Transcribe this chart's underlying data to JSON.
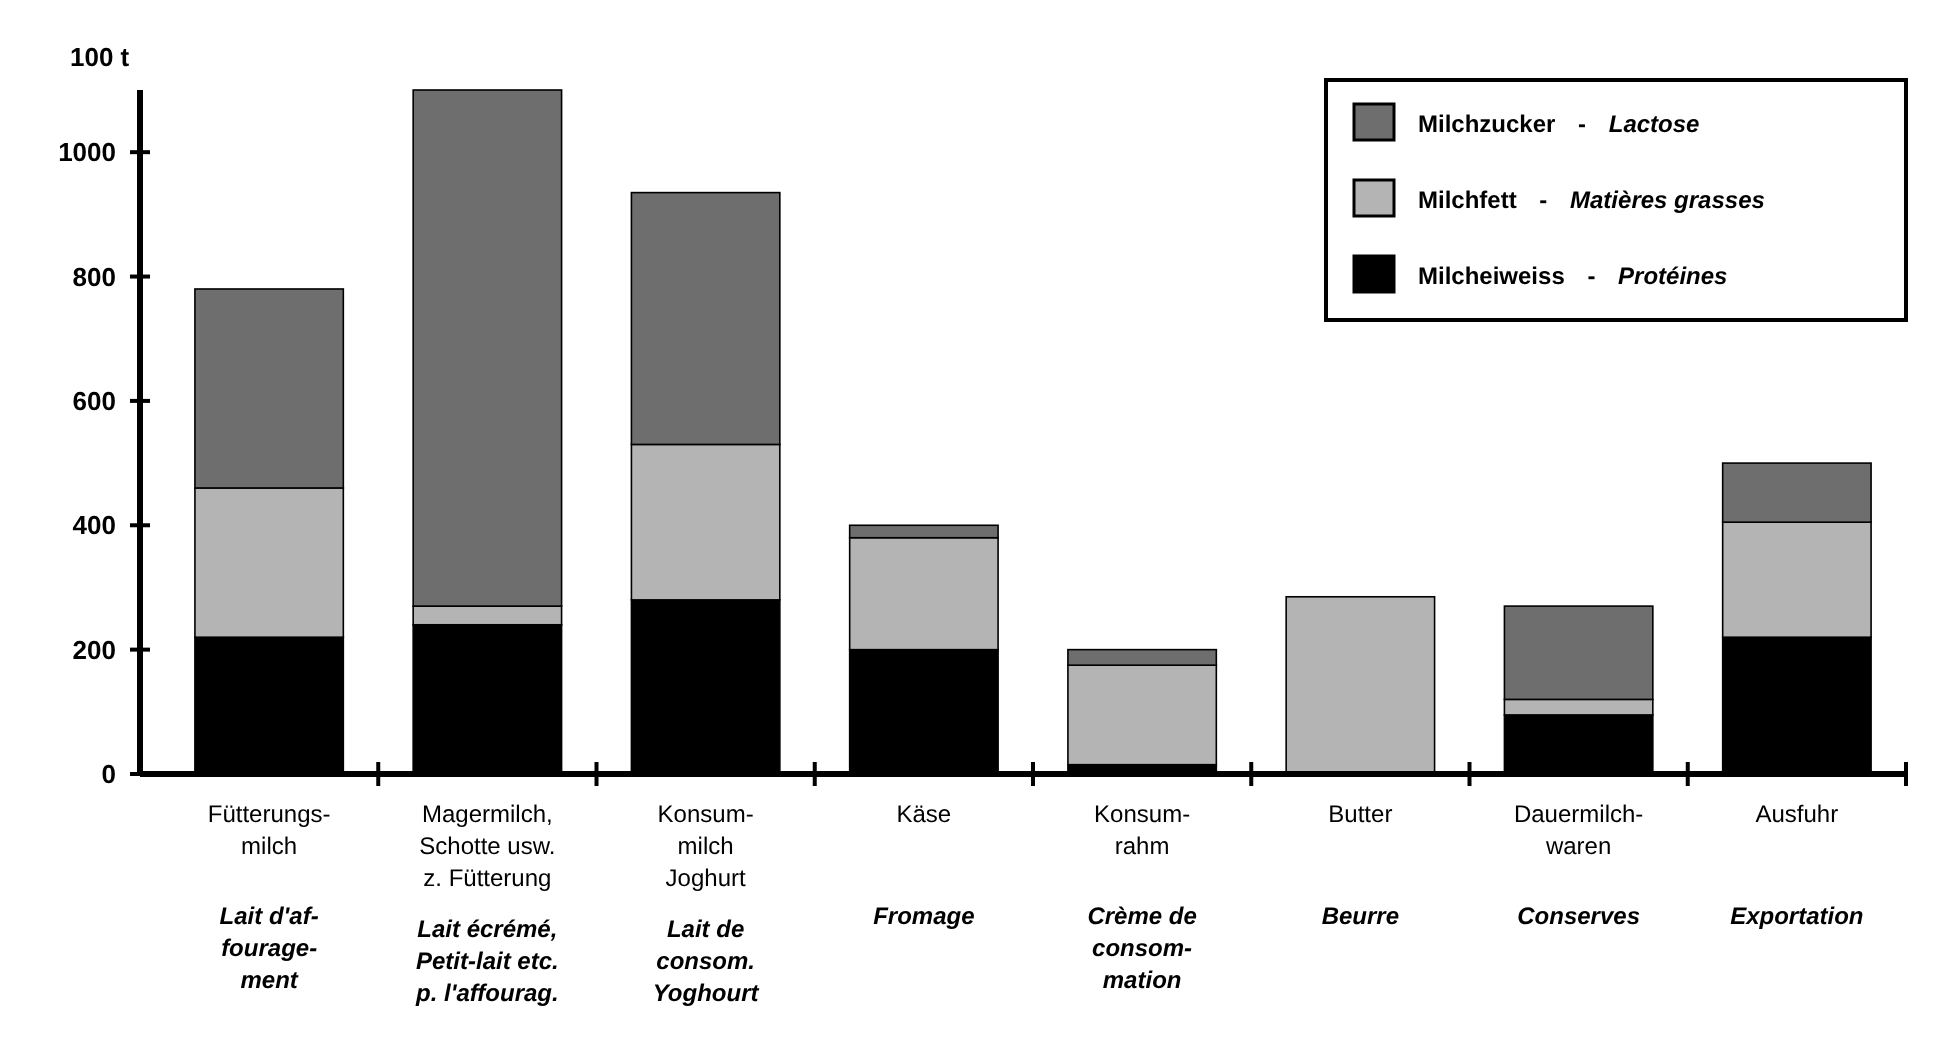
{
  "chart_data": {
    "type": "bar",
    "stacked": true,
    "ylabel": "100 t",
    "categories": [
      "Fütterungs-\nmilch\n\nLait d'af-\nfourage-\nment",
      "Magermilch,\nSchotte usw.\nz. Fütterung\n\nLait écrémé,\nPetit-lait etc.\np. l'affourag.",
      "Konsum-\nmilch\nJoghurt\n\nLait de\nconsom.\nYoghourt",
      "Käse\n\nFromage",
      "Konsum-\nrahm\n\nCrème de\nconsom-\nmation",
      "Butter\n\nBeurre",
      "Dauermilch-\nwaren\n\nConserves",
      "Ausfuhr\n\nExportation"
    ],
    "series": [
      {
        "name": "Milcheiweiss - Protéines",
        "color": "#000000",
        "values": [
          220,
          240,
          280,
          200,
          15,
          null,
          95,
          220
        ]
      },
      {
        "name": "Milchfett - Matières grasses",
        "color": "#b4b4b4",
        "values": [
          240,
          30,
          250,
          180,
          160,
          285,
          25,
          185
        ]
      },
      {
        "name": "Milchzucker - Lactose",
        "color": "#6e6e6e",
        "values": [
          320,
          830,
          405,
          20,
          25,
          0,
          150,
          95
        ]
      }
    ],
    "ylim": [
      0,
      1100
    ],
    "yticks": [
      0,
      200,
      400,
      600,
      800,
      1000
    ],
    "legend": "top right"
  }
}
